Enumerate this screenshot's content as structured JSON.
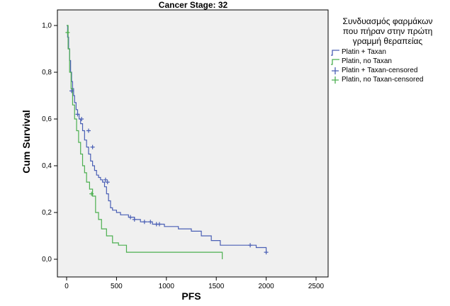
{
  "chart_data": {
    "type": "line",
    "title": "Cancer Stage: 32",
    "xlabel": "PFS",
    "ylabel": "Cum Survival",
    "xlim": [
      0,
      2500
    ],
    "ylim": [
      0,
      1
    ],
    "xticks": [
      0,
      500,
      1000,
      1500,
      2000,
      2500
    ],
    "yticks": [
      0,
      0.2,
      0.4,
      0.6,
      0.8,
      1.0
    ],
    "xtick_labels": [
      "0",
      "500",
      "1000",
      "1500",
      "2000",
      "2500"
    ],
    "ytick_labels": [
      "0,0",
      "0,2",
      "0,4",
      "0,6",
      "0,8",
      "1,0"
    ],
    "grid": false,
    "legend_title": "Συνδυασμός φαρμάκων\nπου πήραν στην πρώτη\nγραμμή θεραπείας",
    "legend_position": "right",
    "series": [
      {
        "name": "Platin + Taxan",
        "color": "#4a5fb5",
        "x": [
          0,
          10,
          20,
          30,
          40,
          50,
          60,
          70,
          80,
          95,
          110,
          125,
          140,
          160,
          180,
          200,
          220,
          240,
          260,
          280,
          300,
          320,
          340,
          360,
          380,
          400,
          420,
          440,
          460,
          500,
          540,
          580,
          620,
          680,
          740,
          800,
          860,
          920,
          980,
          1050,
          1120,
          1250,
          1350,
          1450,
          1540,
          1700,
          1900,
          2000
        ],
        "y": [
          1.0,
          0.95,
          0.9,
          0.85,
          0.8,
          0.76,
          0.73,
          0.7,
          0.67,
          0.64,
          0.62,
          0.6,
          0.58,
          0.55,
          0.51,
          0.48,
          0.45,
          0.42,
          0.4,
          0.38,
          0.36,
          0.35,
          0.34,
          0.33,
          0.31,
          0.28,
          0.25,
          0.22,
          0.21,
          0.2,
          0.19,
          0.19,
          0.18,
          0.17,
          0.16,
          0.16,
          0.15,
          0.15,
          0.14,
          0.14,
          0.13,
          0.12,
          0.1,
          0.08,
          0.06,
          0.06,
          0.05,
          0.03
        ]
      },
      {
        "name": "Platin, no Taxan",
        "color": "#4caf50",
        "x": [
          0,
          15,
          30,
          45,
          60,
          80,
          100,
          120,
          140,
          160,
          180,
          200,
          230,
          260,
          290,
          320,
          350,
          400,
          460,
          520,
          600,
          1560
        ],
        "y": [
          1.0,
          0.9,
          0.8,
          0.73,
          0.66,
          0.6,
          0.55,
          0.5,
          0.45,
          0.4,
          0.37,
          0.33,
          0.3,
          0.27,
          0.2,
          0.17,
          0.13,
          0.1,
          0.07,
          0.06,
          0.03,
          0.0
        ]
      }
    ],
    "censored": [
      {
        "name": "Platin + Taxan-censored",
        "color": "#4a5fb5",
        "points": [
          [
            50,
            0.72
          ],
          [
            110,
            0.62
          ],
          [
            150,
            0.6
          ],
          [
            220,
            0.55
          ],
          [
            260,
            0.48
          ],
          [
            390,
            0.34
          ],
          [
            410,
            0.33
          ],
          [
            640,
            0.18
          ],
          [
            680,
            0.17
          ],
          [
            780,
            0.16
          ],
          [
            840,
            0.16
          ],
          [
            900,
            0.15
          ],
          [
            930,
            0.15
          ],
          [
            1840,
            0.06
          ],
          [
            2000,
            0.03
          ]
        ]
      },
      {
        "name": "Platin, no Taxan-censored",
        "color": "#4caf50",
        "points": [
          [
            10,
            0.97
          ],
          [
            250,
            0.28
          ]
        ]
      }
    ]
  }
}
